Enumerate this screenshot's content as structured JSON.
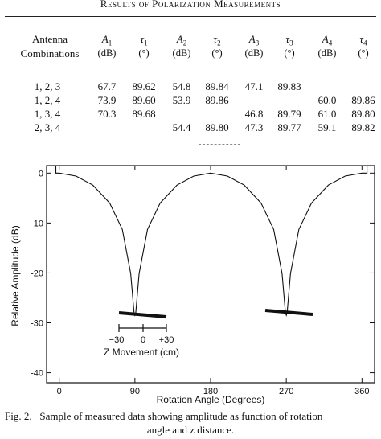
{
  "table": {
    "title": "Results of Polarization Measurements",
    "header_first": [
      "Antenna",
      "Combinations"
    ],
    "columns": [
      {
        "sym": "A",
        "sub": "1",
        "unit": "(dB)"
      },
      {
        "sym": "τ",
        "sub": "1",
        "unit": "(°)"
      },
      {
        "sym": "A",
        "sub": "2",
        "unit": "(dB)"
      },
      {
        "sym": "τ",
        "sub": "2",
        "unit": "(°)"
      },
      {
        "sym": "A",
        "sub": "3",
        "unit": "(dB)"
      },
      {
        "sym": "τ",
        "sub": "3",
        "unit": "(°)"
      },
      {
        "sym": "A",
        "sub": "4",
        "unit": "(dB)"
      },
      {
        "sym": "τ",
        "sub": "4",
        "unit": "(°)"
      }
    ],
    "rows": [
      {
        "combo": "1, 2, 3",
        "cells": [
          "67.7",
          "89.62",
          "54.8",
          "89.84",
          "47.1",
          "89.83",
          "",
          ""
        ]
      },
      {
        "combo": "1, 2, 4",
        "cells": [
          "73.9",
          "89.60",
          "53.9",
          "89.86",
          "",
          "",
          "60.0",
          "89.86"
        ]
      },
      {
        "combo": "1, 3, 4",
        "cells": [
          "70.3",
          "89.68",
          "",
          "",
          "46.8",
          "89.79",
          "61.0",
          "89.80"
        ]
      },
      {
        "combo": "2, 3, 4",
        "cells": [
          "",
          "",
          "54.4",
          "89.80",
          "47.3",
          "89.77",
          "59.1",
          "89.82"
        ]
      }
    ]
  },
  "chart_data": {
    "type": "line",
    "xlabel": "Rotation Angle (Degrees)",
    "ylabel": "Relative Amplitude (dB)",
    "xlim": [
      -15,
      375
    ],
    "ylim": [
      -42,
      1.5
    ],
    "xticks": [
      0,
      90,
      180,
      270,
      360
    ],
    "yticks": [
      0,
      -10,
      -20,
      -30,
      -40
    ],
    "grid": false,
    "series": [
      {
        "x": [
          0,
          20,
          40,
          60,
          75,
          85,
          89,
          90,
          91,
          95,
          105,
          120,
          140,
          160,
          180,
          200,
          220,
          240,
          255,
          265,
          269,
          270,
          271,
          275,
          285,
          300,
          320,
          340,
          360
        ],
        "y": [
          0,
          -0.6,
          -2.4,
          -6.0,
          -11.3,
          -20.1,
          -28.0,
          -28.5,
          -28.0,
          -20.1,
          -11.3,
          -6.0,
          -2.4,
          -0.6,
          0,
          -0.6,
          -2.4,
          -6.0,
          -11.3,
          -20.1,
          -28.0,
          -28.5,
          -28.0,
          -20.1,
          -11.3,
          -6.0,
          -2.4,
          -0.6,
          0
        ]
      }
    ],
    "annotations": {
      "inset_label": "Z Movement (cm)",
      "inset_ticks": [
        "−30",
        "0",
        "+30"
      ]
    }
  },
  "caption": {
    "label": "Fig. 2.",
    "line1": "Sample of measured data showing amplitude as function of rotation",
    "line2": "angle and z distance."
  }
}
